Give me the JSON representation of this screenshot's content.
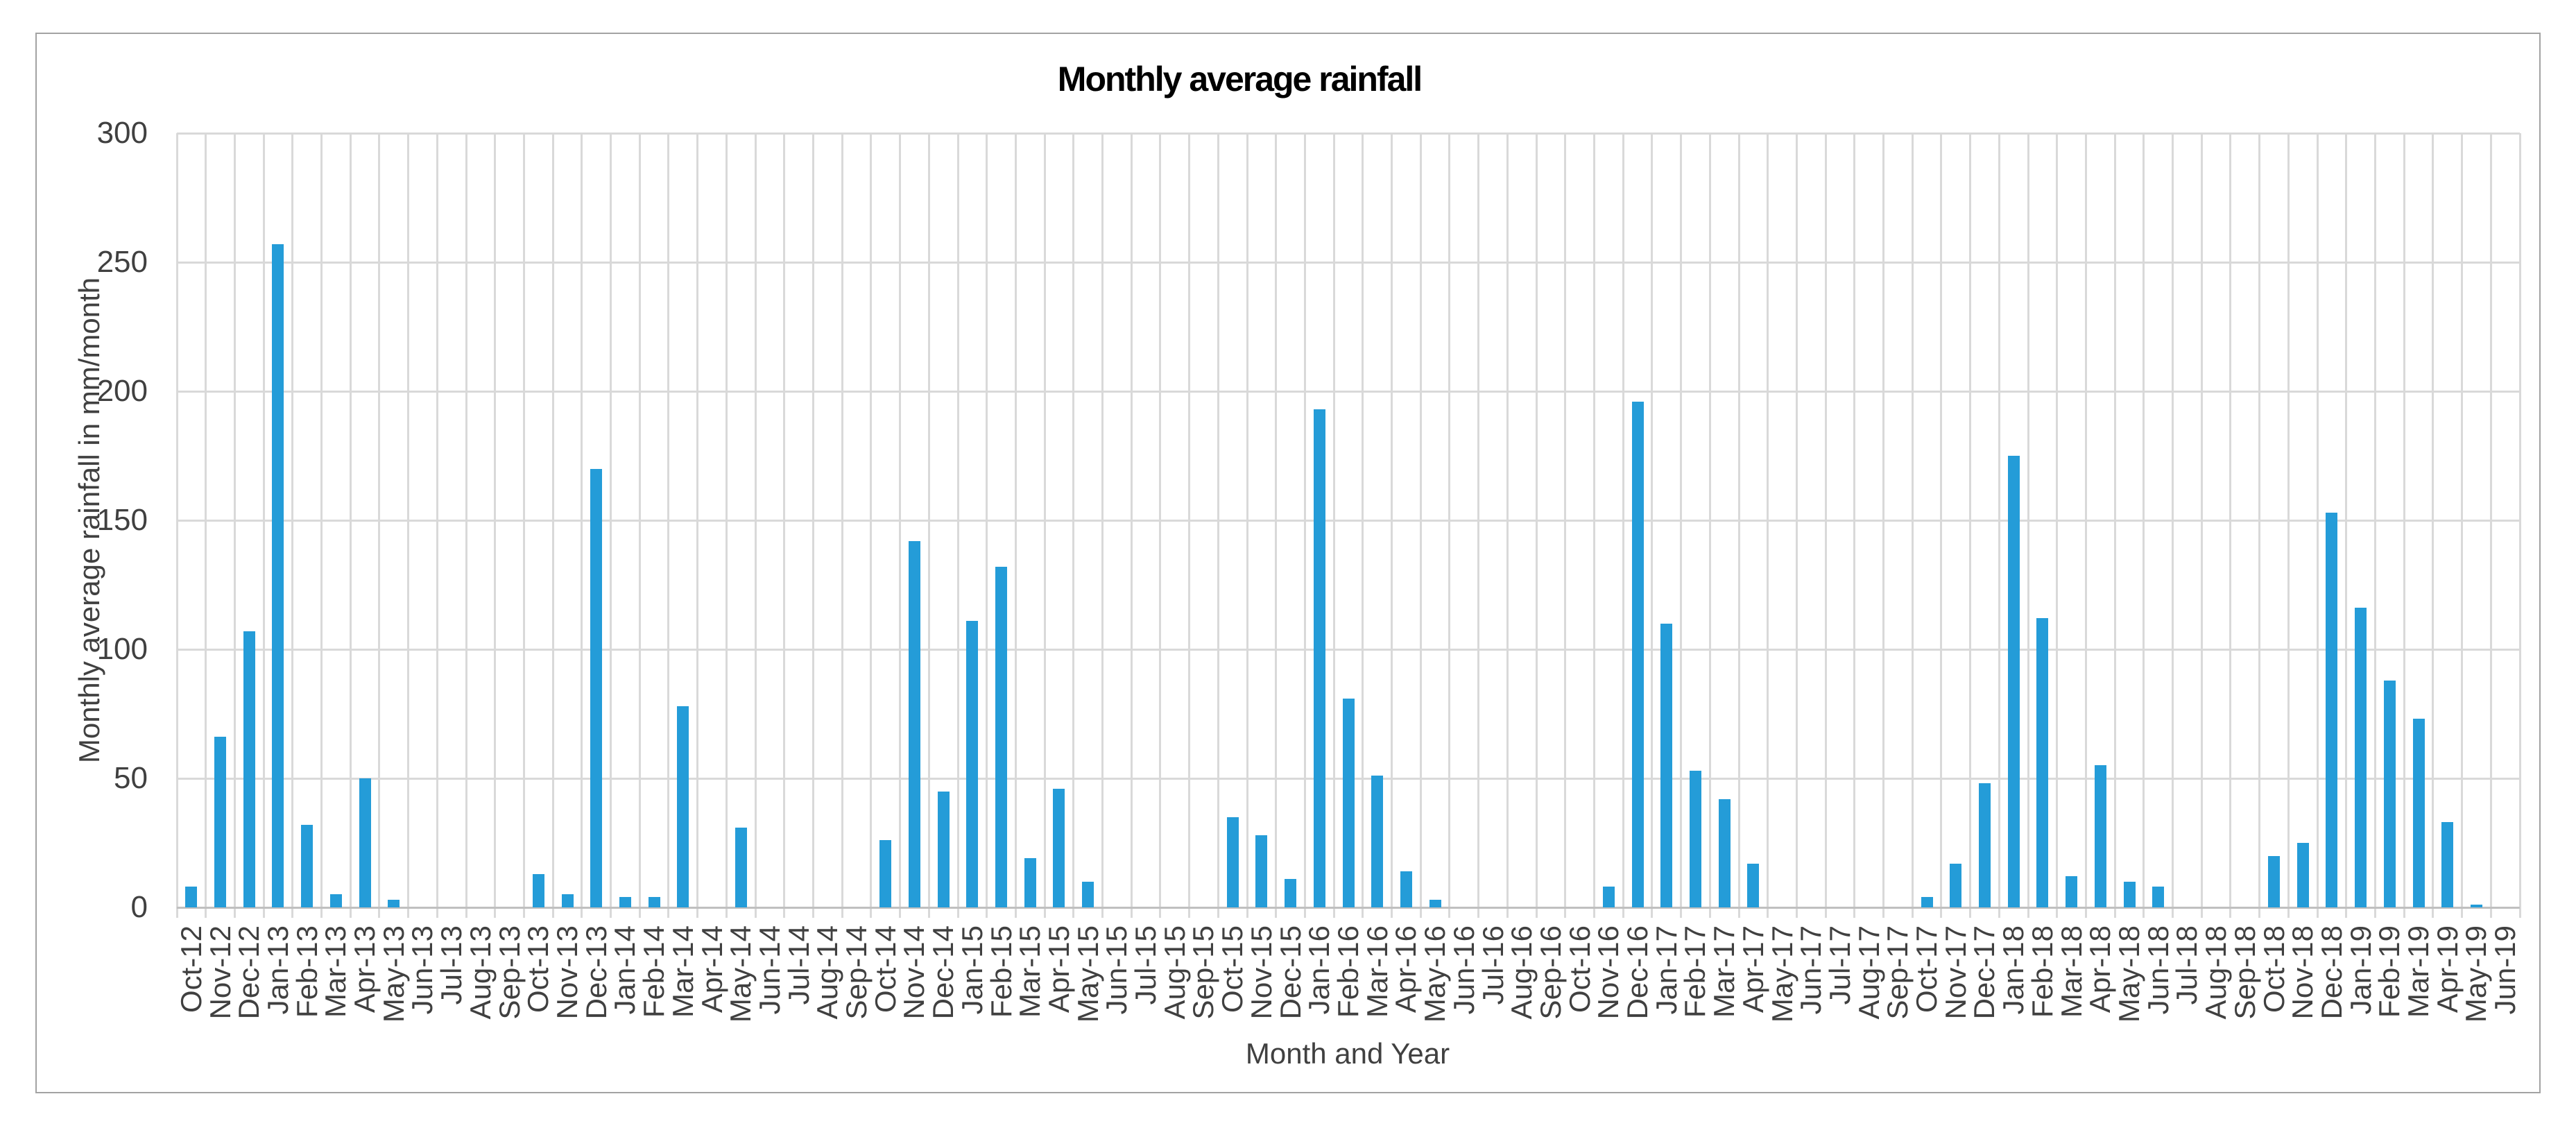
{
  "chart_data": {
    "type": "bar",
    "title": "Monthly average rainfall",
    "xlabel": "Month and Year",
    "ylabel": "Monthly average rainfall in mm/month",
    "ylim": [
      0,
      300
    ],
    "yticks": [
      0,
      50,
      100,
      150,
      200,
      250,
      300
    ],
    "grid": "horizontal and vertical light gray gridlines",
    "legend": "none",
    "categories": [
      "Oct-12",
      "Nov-12",
      "Dec-12",
      "Jan-13",
      "Feb-13",
      "Mar-13",
      "Apr-13",
      "May-13",
      "Jun-13",
      "Jul-13",
      "Aug-13",
      "Sep-13",
      "Oct-13",
      "Nov-13",
      "Dec-13",
      "Jan-14",
      "Feb-14",
      "Mar-14",
      "Apr-14",
      "May-14",
      "Jun-14",
      "Jul-14",
      "Aug-14",
      "Sep-14",
      "Oct-14",
      "Nov-14",
      "Dec-14",
      "Jan-15",
      "Feb-15",
      "Mar-15",
      "Apr-15",
      "May-15",
      "Jun-15",
      "Jul-15",
      "Aug-15",
      "Sep-15",
      "Oct-15",
      "Nov-15",
      "Dec-15",
      "Jan-16",
      "Feb-16",
      "Mar-16",
      "Apr-16",
      "May-16",
      "Jun-16",
      "Jul-16",
      "Aug-16",
      "Sep-16",
      "Oct-16",
      "Nov-16",
      "Dec-16",
      "Jan-17",
      "Feb-17",
      "Mar-17",
      "Apr-17",
      "May-17",
      "Jun-17",
      "Jul-17",
      "Aug-17",
      "Sep-17",
      "Oct-17",
      "Nov-17",
      "Dec-17",
      "Jan-18",
      "Feb-18",
      "Mar-18",
      "Apr-18",
      "May-18",
      "Jun-18",
      "Jul-18",
      "Aug-18",
      "Sep-18",
      "Oct-18",
      "Nov-18",
      "Dec-18",
      "Jan-19",
      "Feb-19",
      "Mar-19",
      "Apr-19",
      "May-19",
      "Jun-19"
    ],
    "values": [
      8,
      66,
      107,
      257,
      32,
      5,
      50,
      3,
      0,
      0,
      0,
      0,
      13,
      5,
      170,
      4,
      4,
      78,
      0,
      31,
      0,
      0,
      0,
      0,
      26,
      142,
      45,
      111,
      132,
      19,
      46,
      10,
      0,
      0,
      0,
      0,
      35,
      28,
      11,
      193,
      81,
      51,
      14,
      3,
      0,
      0,
      0,
      0,
      0,
      8,
      196,
      110,
      53,
      42,
      17,
      0,
      0,
      0,
      0,
      0,
      4,
      17,
      48,
      175,
      112,
      12,
      55,
      10,
      8,
      0,
      0,
      0,
      20,
      25,
      153,
      116,
      88,
      73,
      33,
      1,
      0
    ]
  },
  "colors": {
    "bar": "#249CD8",
    "gridline": "#D9D9D9",
    "axis_line": "#C0C0C0",
    "tick_text": "#404040",
    "title_text": "#000000",
    "frame_border": "#A3A3A3"
  }
}
